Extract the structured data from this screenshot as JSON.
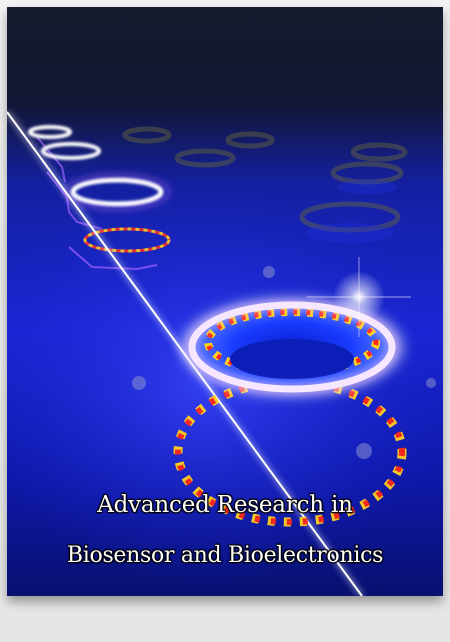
{
  "journal": {
    "title_line_1": "Advanced Research in",
    "title_line_2": "Biosensor and Bioelectronics"
  },
  "cover_art": {
    "subject": "micro-ring resonators on a chip with a light waveguide",
    "colors": {
      "background_top": "#14182e",
      "background_blue": "#1522c8",
      "ring_glow": "#ffffff",
      "field_red": "#ff2a1a",
      "field_yellow": "#ffd21e"
    }
  }
}
